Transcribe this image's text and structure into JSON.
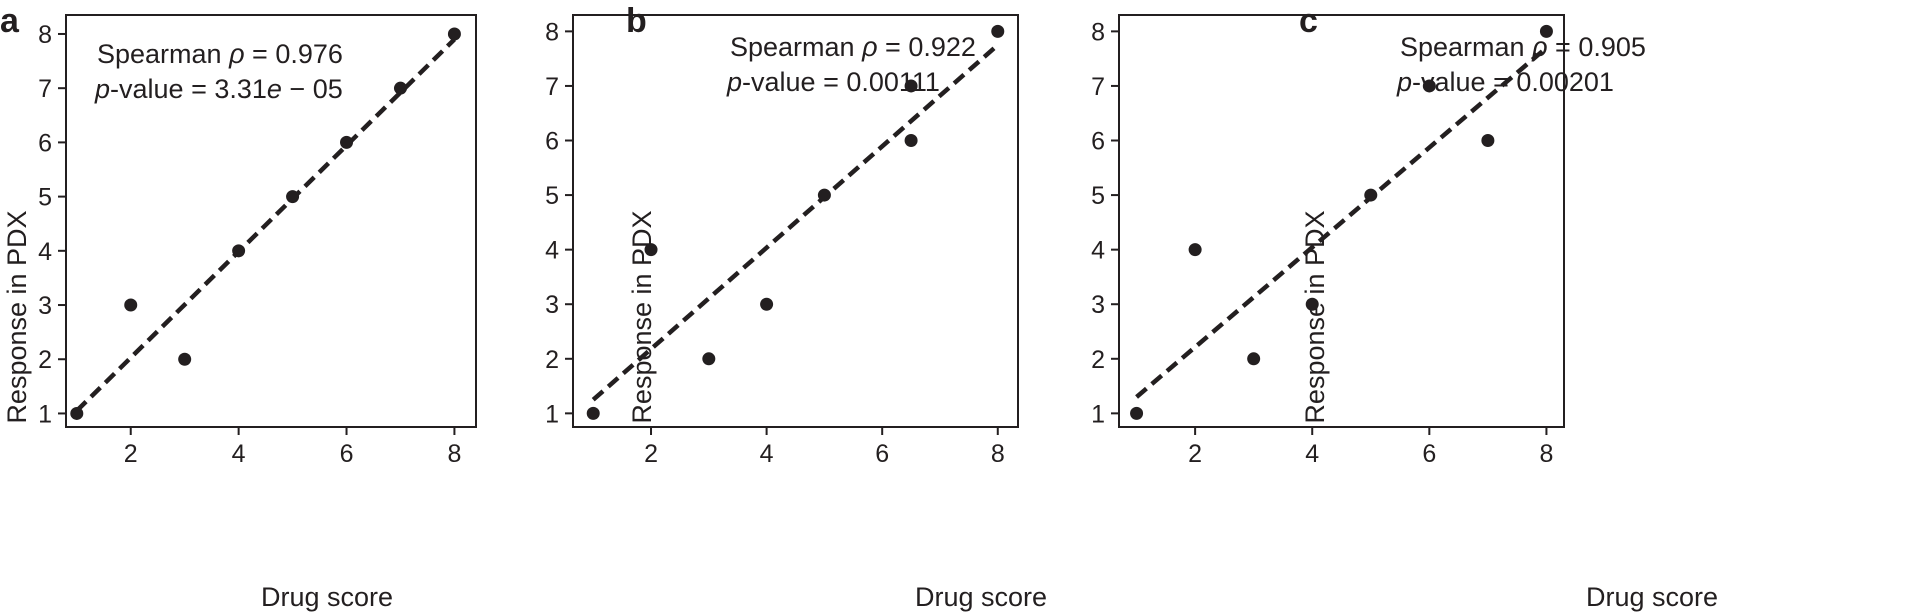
{
  "chart_data": [
    {
      "type": "scatter",
      "panel": "a",
      "xlabel": "Drug score",
      "ylabel": "Response in PDX",
      "xlim": [
        0.8,
        8.4
      ],
      "ylim": [
        0.75,
        8.35
      ],
      "xticks": [
        2,
        4,
        6,
        8
      ],
      "yticks": [
        1,
        2,
        3,
        4,
        5,
        6,
        7,
        8
      ],
      "points": [
        {
          "x": 1,
          "y": 1
        },
        {
          "x": 2,
          "y": 3
        },
        {
          "x": 3,
          "y": 2
        },
        {
          "x": 4,
          "y": 4
        },
        {
          "x": 5,
          "y": 5
        },
        {
          "x": 6,
          "y": 6
        },
        {
          "x": 7,
          "y": 7
        },
        {
          "x": 8,
          "y": 8
        }
      ],
      "fit_line": {
        "style": "dashed",
        "x": [
          1,
          8
        ],
        "y": [
          1.05,
          7.9
        ]
      },
      "annotation": {
        "stat_name": "Spearman ",
        "rho_symbol": "ρ",
        "rho_value": " = 0.976",
        "p_symbol": "p",
        "p_text": "-value = 3.31",
        "e_symbol": "e",
        "e_suffix": " − 05"
      },
      "grid": false,
      "legend": "none"
    },
    {
      "type": "scatter",
      "panel": "b",
      "xlabel": "Drug score",
      "ylabel": "Response in PDX",
      "xlim": [
        0.65,
        8.35
      ],
      "ylim": [
        0.75,
        8.3
      ],
      "xticks": [
        2,
        4,
        6,
        8
      ],
      "yticks": [
        1,
        2,
        3,
        4,
        5,
        6,
        7,
        8
      ],
      "points": [
        {
          "x": 1,
          "y": 1
        },
        {
          "x": 2,
          "y": 4
        },
        {
          "x": 3,
          "y": 2
        },
        {
          "x": 4,
          "y": 3
        },
        {
          "x": 5,
          "y": 5
        },
        {
          "x": 6.5,
          "y": 6
        },
        {
          "x": 6.5,
          "y": 7
        },
        {
          "x": 8,
          "y": 8
        }
      ],
      "fit_line": {
        "style": "dashed",
        "x": [
          1,
          8
        ],
        "y": [
          1.25,
          7.75
        ]
      },
      "annotation": {
        "stat_name": "Spearman ",
        "rho_symbol": "ρ",
        "rho_value": " = 0.922",
        "p_symbol": "p",
        "p_text": "-value = 0.00111"
      },
      "grid": false,
      "legend": "none"
    },
    {
      "type": "scatter",
      "panel": "c",
      "xlabel": "Drug score",
      "ylabel": "Response in PDX",
      "xlim": [
        0.7,
        8.3
      ],
      "ylim": [
        0.75,
        8.3
      ],
      "xticks": [
        2,
        4,
        6,
        8
      ],
      "yticks": [
        1,
        2,
        3,
        4,
        5,
        6,
        7,
        8
      ],
      "points": [
        {
          "x": 1,
          "y": 1
        },
        {
          "x": 2,
          "y": 4
        },
        {
          "x": 3,
          "y": 2
        },
        {
          "x": 4,
          "y": 3
        },
        {
          "x": 5,
          "y": 5
        },
        {
          "x": 6,
          "y": 7
        },
        {
          "x": 7,
          "y": 6
        },
        {
          "x": 8,
          "y": 8
        }
      ],
      "fit_line": {
        "style": "dashed",
        "x": [
          1,
          8
        ],
        "y": [
          1.3,
          7.7
        ]
      },
      "annotation": {
        "stat_name": "Spearman ",
        "rho_symbol": "ρ",
        "rho_value": " = 0.905",
        "p_symbol": "p",
        "p_text": "-value = 0.00201"
      },
      "grid": false,
      "legend": "none"
    }
  ],
  "colors": {
    "ink": "#231f20",
    "background": "#ffffff"
  }
}
